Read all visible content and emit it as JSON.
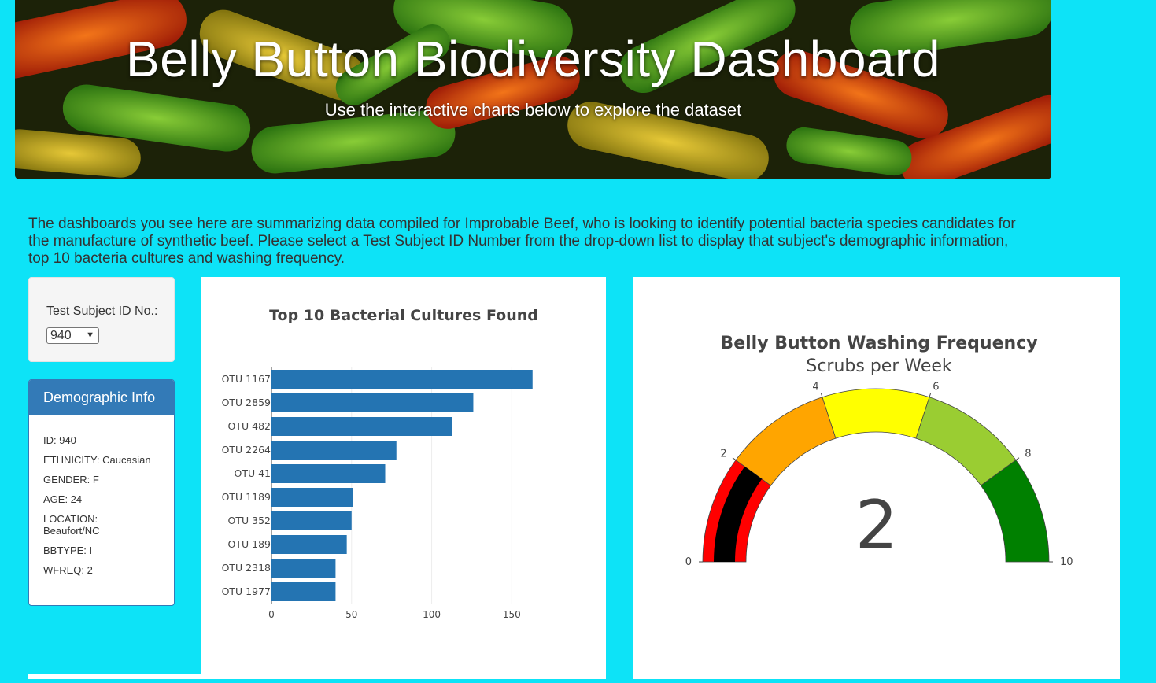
{
  "header": {
    "title": "Belly Button Biodiversity Dashboard",
    "subtitle": "Use the interactive charts below to explore the dataset"
  },
  "intro": "The dashboards you see here are summarizing data compiled for Improbable Beef, who is looking to identify potential bacteria species candidates for the manufacture of synthetic beef. Please select a Test Subject ID Number from the drop-down list to display that subject's demographic information, top 10 bacteria cultures and washing frequency.",
  "selector": {
    "label": "Test Subject ID No.:",
    "value": "940"
  },
  "demographic": {
    "heading": "Demographic Info",
    "items": [
      "ID: 940",
      "ETHNICITY: Caucasian",
      "GENDER: F",
      "AGE: 24",
      "LOCATION: Beaufort/NC",
      "BBTYPE: I",
      "WFREQ: 2"
    ]
  },
  "colors": {
    "page_bg": "#0de3f7",
    "bar": "#2474b2",
    "panel_head": "#337ab7"
  },
  "chart_data": [
    {
      "type": "bar",
      "orientation": "horizontal",
      "title": "Top 10 Bacterial Cultures Found",
      "categories": [
        "OTU 1167",
        "OTU 2859",
        "OTU 482",
        "OTU 2264",
        "OTU 41",
        "OTU 1189",
        "OTU 352",
        "OTU 189",
        "OTU 2318",
        "OTU 1977"
      ],
      "values": [
        163,
        126,
        113,
        78,
        71,
        51,
        50,
        47,
        40,
        40
      ],
      "xticks": [
        0,
        50,
        100,
        150
      ],
      "xlim": [
        0,
        170
      ],
      "grid": true
    },
    {
      "type": "gauge",
      "title": "Belly Button Washing Frequency",
      "subtitle": "Scrubs per Week",
      "value": 2,
      "value_label": "2",
      "range": [
        0,
        10
      ],
      "ticks": [
        "0",
        "2",
        "4",
        "6",
        "8",
        "10"
      ],
      "bands": [
        {
          "from": 0,
          "to": 2,
          "color": "#ff0000"
        },
        {
          "from": 2,
          "to": 4,
          "color": "#ffa500"
        },
        {
          "from": 4,
          "to": 6,
          "color": "#ffff00"
        },
        {
          "from": 6,
          "to": 8,
          "color": "#9acd32"
        },
        {
          "from": 8,
          "to": 10,
          "color": "#008000"
        }
      ],
      "bar_color": "#000000"
    }
  ]
}
